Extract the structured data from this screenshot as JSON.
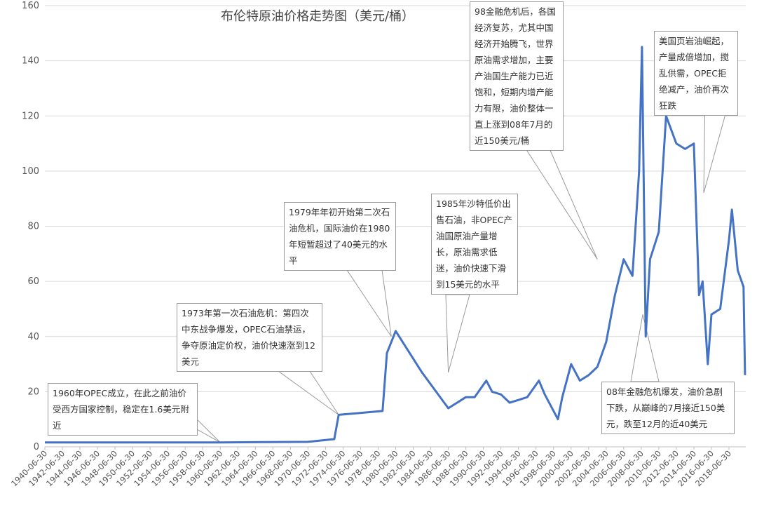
{
  "chart_data": {
    "type": "line",
    "title": "布伦特原油价格走势图（美元/桶）",
    "ylim": [
      0,
      160
    ],
    "yticks": [
      0,
      20,
      40,
      60,
      80,
      100,
      120,
      140,
      160
    ],
    "xticks": [
      "1940-06-30",
      "1942-06-30",
      "1944-06-30",
      "1946-06-30",
      "1948-06-30",
      "1950-06-30",
      "1952-06-30",
      "1954-06-30",
      "1956-06-30",
      "1958-06-30",
      "1960-06-30",
      "1962-06-30",
      "1964-06-30",
      "1966-06-30",
      "1968-06-30",
      "1970-06-30",
      "1972-06-30",
      "1974-06-30",
      "1976-06-30",
      "1978-06-30",
      "1980-06-30",
      "1982-06-30",
      "1984-06-30",
      "1986-06-30",
      "1988-06-30",
      "1990-06-30",
      "1992-06-30",
      "1994-06-30",
      "1996-06-30",
      "1998-06-30",
      "2000-06-30",
      "2002-06-30",
      "2004-06-30",
      "2006-06-30",
      "2008-06-30",
      "2010-06-30",
      "2012-06-30",
      "2014-06-30",
      "2016-06-30",
      "2018-06-30"
    ],
    "grid": true,
    "color": "#4472C4",
    "series": [
      {
        "x": [
          "1940-06-30",
          "1950-06-30",
          "1960-06-30",
          "1965-06-30",
          "1970-06-30",
          "1973-06-30",
          "1973-12-31",
          "1978-12-31",
          "1979-06-30",
          "1980-06-30",
          "1983-06-30",
          "1986-06-30",
          "1988-06-30",
          "1989-06-30",
          "1990-10-31",
          "1991-06-30",
          "1992-06-30",
          "1993-06-30",
          "1994-06-30",
          "1995-06-30",
          "1996-10-31",
          "1997-06-30",
          "1998-12-31",
          "1999-06-30",
          "2000-06-30",
          "2001-06-30",
          "2002-06-30",
          "2003-06-30",
          "2004-06-30",
          "2005-06-30",
          "2006-06-30",
          "2007-06-30",
          "2008-03-31",
          "2008-07-31",
          "2008-12-31",
          "2009-06-30",
          "2010-06-30",
          "2011-04-30",
          "2012-06-30",
          "2013-06-30",
          "2014-06-30",
          "2015-01-31",
          "2015-06-30",
          "2016-01-31",
          "2016-06-30",
          "2017-06-30",
          "2018-06-30",
          "2018-10-31",
          "2019-06-30",
          "2020-02-28",
          "2020-04-30"
        ],
        "y": [
          1.6,
          1.6,
          1.6,
          1.7,
          1.8,
          2.8,
          11.6,
          13,
          34,
          42,
          27,
          14,
          18,
          18,
          24,
          20,
          19,
          16,
          17,
          18,
          24,
          19,
          10,
          18,
          30,
          24,
          26,
          29,
          38,
          55,
          68,
          62,
          100,
          145,
          40,
          68,
          78,
          120,
          110,
          108,
          110,
          55,
          60,
          30,
          48,
          50,
          75,
          86,
          64,
          58,
          26
        ]
      }
    ]
  },
  "annotations": [
    {
      "id": "opec_1960",
      "text": "1960年OPEC成立，在此之前油价受西方国家控制，稳定在1.6美元附近"
    },
    {
      "id": "crisis_1973",
      "text": "1973年第一次石油危机：第四次中东战争爆发，OPEC石油禁运，争夺原油定价权，油价快速涨到12美元"
    },
    {
      "id": "crisis_1979",
      "text": "1979年年初开始第二次石油危机，国际油价在1980年短暂超过了40美元的水平"
    },
    {
      "id": "saudi_1985",
      "text": "1985年沙特低价出售石油，非OPEC产油国原油产量增长，原油需求低迷，油价快速下滑到15美元的水平"
    },
    {
      "id": "rise_1998",
      "text": "98金融危机后，各国经济复苏，尤其中国经济开始腾飞，世界原油需求增加，主要产油国生产能力已近饱和，短期内增产能力有限，油价整体一直上涨到08年7月的近150美元/桶"
    },
    {
      "id": "shale",
      "text": "美国页岩油崛起，产量成倍增加，搅乱供需，OPEC拒绝减产，油价再次狂跌"
    },
    {
      "id": "crisis_2008",
      "text": "08年金融危机爆发，油价急剧下跌，从巅峰的7月接近150美元，跌至12月的近40美元"
    }
  ]
}
